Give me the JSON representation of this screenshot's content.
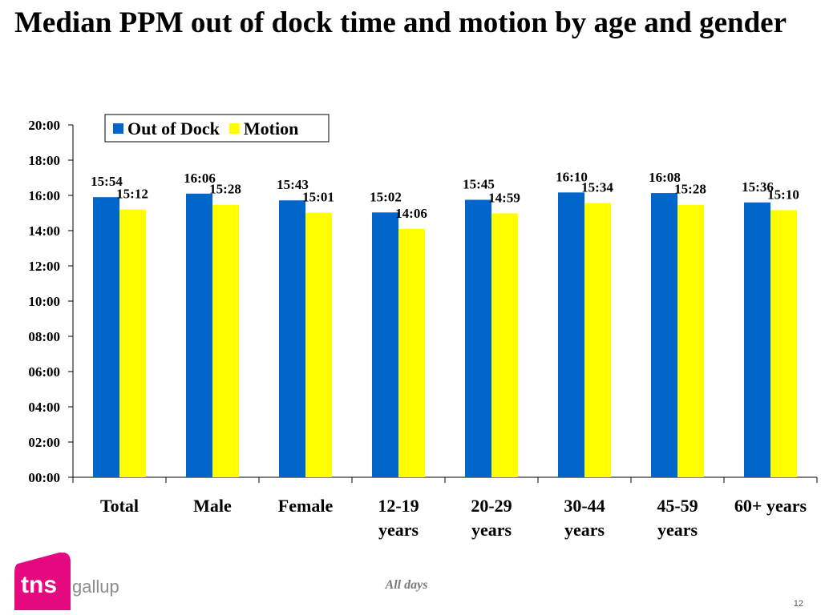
{
  "title": "Median PPM out of dock time and motion by age and gender",
  "footer": {
    "caption": "All days",
    "page_number": "12"
  },
  "logo": {
    "brand": "tns",
    "product": "gallup",
    "colors": {
      "magenta": "#e5097f",
      "gray": "#8c8c8c"
    }
  },
  "colors": {
    "out_of_dock": "#0066cc",
    "motion": "#ffff00"
  },
  "chart_data": {
    "type": "bar",
    "title": "",
    "xlabel": "",
    "ylabel": "",
    "ylim": [
      0,
      1200
    ],
    "yticks": [
      {
        "value": 0,
        "label": "00:00"
      },
      {
        "value": 120,
        "label": "02:00"
      },
      {
        "value": 240,
        "label": "04:00"
      },
      {
        "value": 360,
        "label": "06:00"
      },
      {
        "value": 480,
        "label": "08:00"
      },
      {
        "value": 600,
        "label": "10:00"
      },
      {
        "value": 720,
        "label": "12:00"
      },
      {
        "value": 840,
        "label": "14:00"
      },
      {
        "value": 960,
        "label": "16:00"
      },
      {
        "value": 1080,
        "label": "18:00"
      },
      {
        "value": 1200,
        "label": "20:00"
      }
    ],
    "categories": [
      [
        "Total"
      ],
      [
        "Male"
      ],
      [
        "Female"
      ],
      [
        "12-19",
        "years"
      ],
      [
        "20-29",
        "years"
      ],
      [
        "30-44",
        "years"
      ],
      [
        "45-59",
        "years"
      ],
      [
        "60+ years"
      ]
    ],
    "legend": {
      "position": "top-left"
    },
    "series": [
      {
        "name": "Out of Dock",
        "color": "#0066cc",
        "values": [
          954,
          966,
          943,
          902,
          945,
          970,
          968,
          936
        ],
        "labels": [
          "15:54",
          "16:06",
          "15:43",
          "15:02",
          "15:45",
          "16:10",
          "16:08",
          "15:36"
        ]
      },
      {
        "name": "Motion",
        "color": "#ffff00",
        "values": [
          912,
          928,
          901,
          846,
          899,
          934,
          928,
          910
        ],
        "labels": [
          "15:12",
          "15:28",
          "15:01",
          "14:06",
          "14:59",
          "15:34",
          "15:28",
          "15:10"
        ]
      }
    ]
  }
}
